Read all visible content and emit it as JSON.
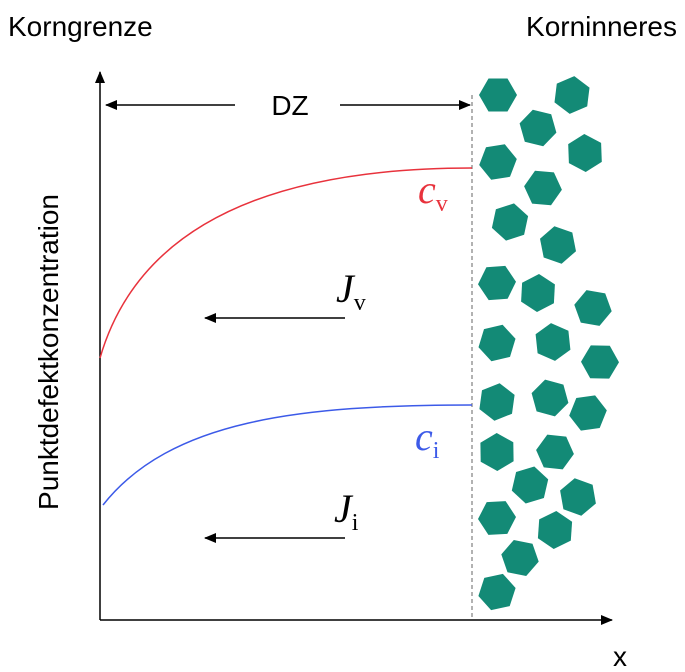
{
  "labels": {
    "left_title": "Korngrenze",
    "right_title": "Korninneres",
    "zone": "DZ",
    "y_axis": "Punktdefektkonzentration",
    "x_axis": "x"
  },
  "curves": [
    {
      "symbol": "c",
      "subscript": "v"
    },
    {
      "symbol": "c",
      "subscript": "i"
    }
  ],
  "fluxes": [
    {
      "symbol": "J",
      "subscript": "v"
    },
    {
      "symbol": "J",
      "subscript": "i"
    }
  ]
}
